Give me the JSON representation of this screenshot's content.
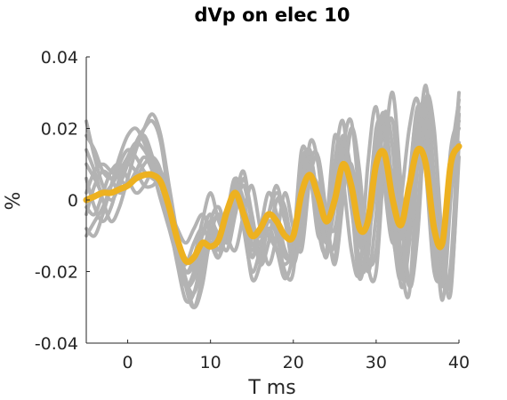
{
  "chart_data": {
    "type": "line",
    "title": "dVp on elec 10",
    "xlabel": "T ms",
    "ylabel": "%",
    "xlim": [
      -5,
      40
    ],
    "ylim": [
      -0.04,
      0.04
    ],
    "xticks": [
      0,
      10,
      20,
      30,
      40
    ],
    "xtick_labels": [
      "0",
      "10",
      "20",
      "30",
      "40"
    ],
    "yticks": [
      -0.04,
      -0.02,
      0,
      0.02,
      0.04
    ],
    "ytick_labels": [
      "-0.04",
      "-0.02",
      "0",
      "0.02",
      "0.04"
    ],
    "grid": false,
    "colors": {
      "trials": "#b3b3b3",
      "mean": "#edb120",
      "axes": "#262626"
    },
    "x": [
      -5,
      -4,
      -3,
      -2,
      -1,
      0,
      1,
      2,
      3,
      4,
      5,
      6,
      7,
      8,
      9,
      10,
      11,
      12,
      13,
      14,
      15,
      16,
      17,
      18,
      19,
      20,
      21,
      22,
      23,
      24,
      25,
      26,
      27,
      28,
      29,
      30,
      31,
      32,
      33,
      34,
      35,
      36,
      37,
      38,
      39,
      40
    ],
    "series": [
      {
        "values": [
          0.022,
          0.012,
          0.004,
          0.0,
          0.004,
          0.01,
          0.016,
          0.02,
          0.022,
          0.016,
          0.0,
          -0.016,
          -0.024,
          -0.02,
          -0.01,
          -0.004,
          -0.012,
          -0.008,
          0.006,
          -0.002,
          -0.016,
          -0.008,
          -0.01,
          -0.014,
          -0.018,
          -0.012,
          0.014,
          0.008,
          -0.01,
          -0.006,
          0.018,
          0.006,
          -0.014,
          -0.02,
          0.01,
          0.026,
          0.004,
          -0.012,
          0.0,
          0.02,
          0.028,
          0.008,
          -0.02,
          -0.018,
          0.014,
          0.022
        ]
      },
      {
        "values": [
          0.01,
          0.006,
          0.002,
          0.004,
          0.008,
          0.012,
          0.016,
          0.018,
          0.012,
          0.004,
          -0.006,
          -0.018,
          -0.028,
          -0.026,
          -0.016,
          -0.008,
          -0.014,
          -0.004,
          0.006,
          -0.008,
          -0.02,
          -0.014,
          -0.006,
          -0.01,
          -0.02,
          -0.02,
          0.006,
          0.014,
          -0.004,
          -0.016,
          0.004,
          0.018,
          0.004,
          -0.018,
          -0.016,
          0.014,
          0.024,
          0.002,
          -0.024,
          -0.012,
          0.02,
          0.026,
          -0.002,
          -0.028,
          0.0,
          0.03
        ]
      },
      {
        "values": [
          0.002,
          0.008,
          0.01,
          0.008,
          0.006,
          0.004,
          0.006,
          0.01,
          0.012,
          0.008,
          -0.004,
          -0.014,
          -0.022,
          -0.03,
          -0.024,
          -0.01,
          -0.004,
          -0.012,
          0.0,
          0.008,
          -0.006,
          -0.018,
          -0.012,
          0.0,
          -0.006,
          -0.018,
          -0.006,
          0.016,
          0.01,
          -0.01,
          -0.012,
          0.014,
          0.022,
          0.0,
          -0.02,
          -0.004,
          0.024,
          0.014,
          -0.016,
          -0.026,
          0.01,
          0.032,
          0.006,
          -0.022,
          -0.018,
          0.024
        ]
      },
      {
        "values": [
          -0.01,
          -0.006,
          -0.002,
          0.004,
          0.01,
          0.014,
          0.012,
          0.008,
          0.006,
          0.004,
          -0.002,
          -0.012,
          -0.02,
          -0.016,
          -0.006,
          0.002,
          -0.006,
          -0.01,
          -0.002,
          0.004,
          -0.006,
          -0.012,
          -0.004,
          0.004,
          -0.006,
          -0.012,
          0.0,
          0.008,
          -0.002,
          -0.01,
          0.004,
          0.014,
          -0.002,
          -0.016,
          -0.004,
          0.018,
          0.01,
          -0.01,
          -0.018,
          0.006,
          0.024,
          0.01,
          -0.014,
          -0.02,
          0.012,
          0.02
        ]
      },
      {
        "values": [
          0.006,
          -0.002,
          -0.006,
          -0.002,
          0.006,
          0.012,
          0.016,
          0.014,
          0.01,
          0.008,
          0.002,
          -0.01,
          -0.022,
          -0.026,
          -0.018,
          -0.006,
          -0.002,
          -0.01,
          -0.014,
          -0.004,
          0.004,
          -0.008,
          -0.018,
          -0.01,
          0.002,
          -0.008,
          -0.014,
          0.006,
          0.012,
          -0.004,
          -0.018,
          0.0,
          0.02,
          0.008,
          -0.018,
          -0.02,
          0.012,
          0.03,
          0.004,
          -0.024,
          -0.01,
          0.024,
          0.018,
          -0.014,
          -0.026,
          0.016
        ]
      },
      {
        "values": [
          -0.004,
          0.004,
          0.008,
          0.006,
          0.002,
          0.004,
          0.008,
          0.012,
          0.008,
          0.0,
          -0.008,
          -0.016,
          -0.018,
          -0.012,
          -0.008,
          -0.012,
          -0.016,
          -0.006,
          0.004,
          -0.004,
          -0.014,
          -0.008,
          0.002,
          -0.004,
          -0.014,
          -0.016,
          0.002,
          0.01,
          -0.002,
          -0.012,
          -0.002,
          0.014,
          0.006,
          -0.01,
          -0.012,
          0.01,
          0.018,
          -0.004,
          -0.018,
          -0.004,
          0.016,
          0.014,
          -0.008,
          -0.022,
          0.004,
          0.026
        ]
      },
      {
        "values": [
          0.014,
          0.008,
          0.0,
          -0.006,
          -0.002,
          0.006,
          0.014,
          0.02,
          0.024,
          0.018,
          0.004,
          -0.01,
          -0.024,
          -0.03,
          -0.022,
          -0.012,
          -0.016,
          -0.008,
          0.004,
          -0.006,
          -0.022,
          -0.018,
          -0.008,
          -0.014,
          -0.022,
          -0.014,
          0.01,
          0.012,
          -0.008,
          -0.014,
          0.01,
          0.022,
          0.0,
          -0.022,
          -0.008,
          0.02,
          0.018,
          -0.008,
          -0.022,
          0.004,
          0.026,
          0.014,
          -0.014,
          -0.022,
          0.01,
          0.028
        ]
      },
      {
        "values": [
          -0.002,
          -0.004,
          0.002,
          0.008,
          0.01,
          0.006,
          0.002,
          0.004,
          0.008,
          0.006,
          -0.002,
          -0.008,
          -0.012,
          -0.008,
          -0.004,
          -0.008,
          -0.01,
          -0.004,
          0.002,
          -0.002,
          -0.008,
          -0.01,
          -0.004,
          0.002,
          -0.004,
          -0.01,
          -0.004,
          0.006,
          0.004,
          -0.006,
          -0.008,
          0.006,
          0.01,
          -0.002,
          -0.01,
          0.004,
          0.014,
          0.006,
          -0.01,
          -0.008,
          0.01,
          0.014,
          -0.002,
          -0.014,
          0.002,
          0.016
        ]
      },
      {
        "values": [
          0.018,
          0.014,
          0.008,
          0.006,
          0.008,
          0.01,
          0.008,
          0.004,
          0.004,
          0.006,
          0.0,
          -0.012,
          -0.02,
          -0.018,
          -0.01,
          -0.006,
          -0.01,
          -0.014,
          -0.004,
          0.006,
          -0.004,
          -0.016,
          -0.012,
          0.0,
          -0.002,
          -0.014,
          -0.01,
          0.01,
          0.012,
          -0.006,
          -0.016,
          0.004,
          0.02,
          0.006,
          -0.016,
          -0.014,
          0.014,
          0.022,
          -0.004,
          -0.024,
          -0.004,
          0.028,
          0.02,
          -0.012,
          -0.024,
          0.012
        ]
      },
      {
        "values": [
          -0.008,
          -0.01,
          -0.004,
          0.004,
          0.012,
          0.018,
          0.02,
          0.016,
          0.01,
          0.004,
          -0.006,
          -0.016,
          -0.024,
          -0.022,
          -0.014,
          -0.01,
          -0.014,
          -0.008,
          0.004,
          0.0,
          -0.012,
          -0.012,
          -0.006,
          -0.008,
          -0.016,
          -0.014,
          0.004,
          0.012,
          0.0,
          -0.012,
          0.0,
          0.016,
          0.008,
          -0.012,
          -0.012,
          0.012,
          0.02,
          0.0,
          -0.02,
          -0.006,
          0.018,
          0.02,
          -0.006,
          -0.024,
          0.006,
          0.024
        ]
      }
    ],
    "mean": {
      "values": [
        0.0,
        0.001,
        0.002,
        0.002,
        0.003,
        0.004,
        0.006,
        0.007,
        0.007,
        0.005,
        -0.002,
        -0.011,
        -0.017,
        -0.016,
        -0.012,
        -0.013,
        -0.011,
        -0.003,
        0.002,
        -0.004,
        -0.01,
        -0.008,
        -0.004,
        -0.006,
        -0.01,
        -0.01,
        0.002,
        0.007,
        0.001,
        -0.006,
        0.0,
        0.01,
        0.004,
        -0.008,
        -0.006,
        0.01,
        0.013,
        0.0,
        -0.007,
        0.004,
        0.014,
        0.01,
        -0.008,
        -0.012,
        0.01,
        0.015
      ]
    }
  }
}
